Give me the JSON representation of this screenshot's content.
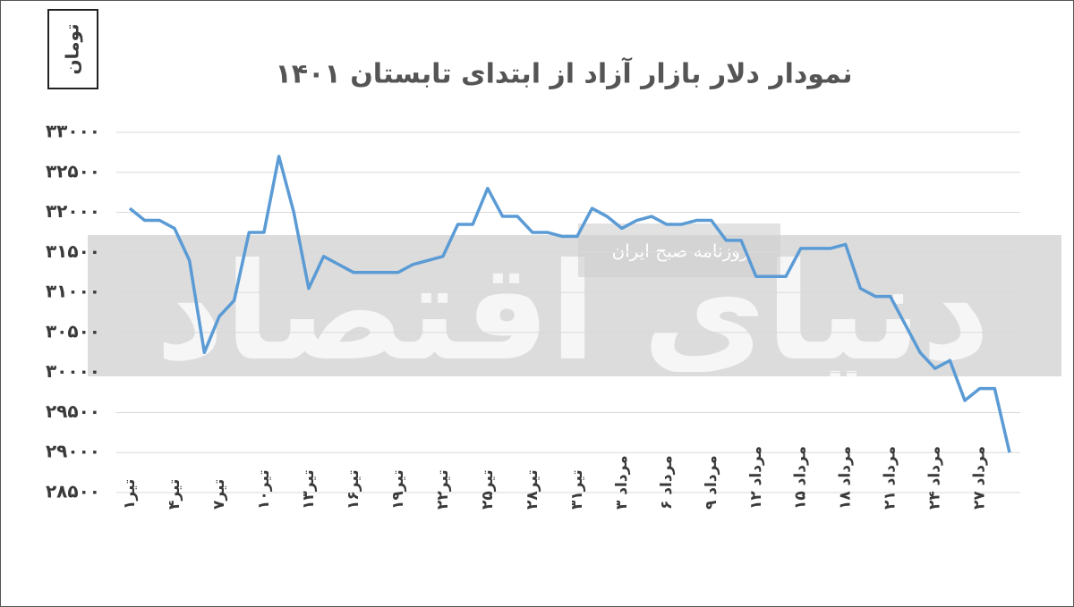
{
  "chart_data": {
    "type": "line",
    "title": "نمودار دلار بازار آزاد از ابتدای تابستان ۱۴۰۱",
    "y_label": "تومان",
    "watermark": "روزنامه صبح ایران",
    "logo": "دنیای اقتصاد",
    "categories": [
      "تیر۱",
      null,
      null,
      "تیر۴",
      null,
      null,
      "تیر۷",
      null,
      null,
      "تیر۱۰",
      null,
      null,
      "تیر۱۳",
      null,
      null,
      "تیر۱۶",
      null,
      null,
      "تیر۱۹",
      null,
      null,
      "تیر۲۲",
      null,
      null,
      "تیر۲۵",
      null,
      null,
      "تیر۲۸",
      null,
      null,
      "تیر۳۱",
      null,
      null,
      "مرداد ۳",
      null,
      null,
      "مرداد ۶",
      null,
      null,
      "مرداد ۹",
      null,
      null,
      "مرداد ۱۲",
      null,
      null,
      "مرداد ۱۵",
      null,
      null,
      "مرداد ۱۸",
      null,
      null,
      "مرداد ۲۱",
      null,
      null,
      "مرداد ۲۴",
      null,
      null,
      "مرداد ۲۷",
      null,
      null
    ],
    "series": [
      {
        "name": "دلار",
        "color": "#5b9bd5",
        "values": [
          32050,
          31900,
          31900,
          31800,
          31400,
          30250,
          30700,
          30900,
          31750,
          31750,
          32700,
          32000,
          31050,
          31450,
          31350,
          31250,
          31250,
          31250,
          31250,
          31350,
          31400,
          31450,
          31850,
          31850,
          32300,
          31950,
          31950,
          31750,
          31750,
          31700,
          31700,
          32050,
          31950,
          31800,
          31900,
          31950,
          31850,
          31850,
          31900,
          31900,
          31650,
          31650,
          31200,
          31200,
          31200,
          31550,
          31550,
          31550,
          31600,
          31050,
          30950,
          30950,
          30600,
          30250,
          30050,
          30150,
          29650,
          29800,
          29800,
          29000
        ]
      }
    ],
    "ylim": [
      28500,
      33000
    ],
    "yticks": [
      {
        "value": 28500,
        "label": "۲۸۵۰۰"
      },
      {
        "value": 29000,
        "label": "۲۹۰۰۰"
      },
      {
        "value": 29500,
        "label": "۲۹۵۰۰"
      },
      {
        "value": 30000,
        "label": "۳۰۰۰۰"
      },
      {
        "value": 30500,
        "label": "۳۰۵۰۰"
      },
      {
        "value": 31000,
        "label": "۳۱۰۰۰"
      },
      {
        "value": 31500,
        "label": "۳۱۵۰۰"
      },
      {
        "value": 32000,
        "label": "۳۲۰۰۰"
      },
      {
        "value": 32500,
        "label": "۳۲۵۰۰"
      },
      {
        "value": 33000,
        "label": "۳۳۰۰۰"
      }
    ],
    "grid": true
  }
}
